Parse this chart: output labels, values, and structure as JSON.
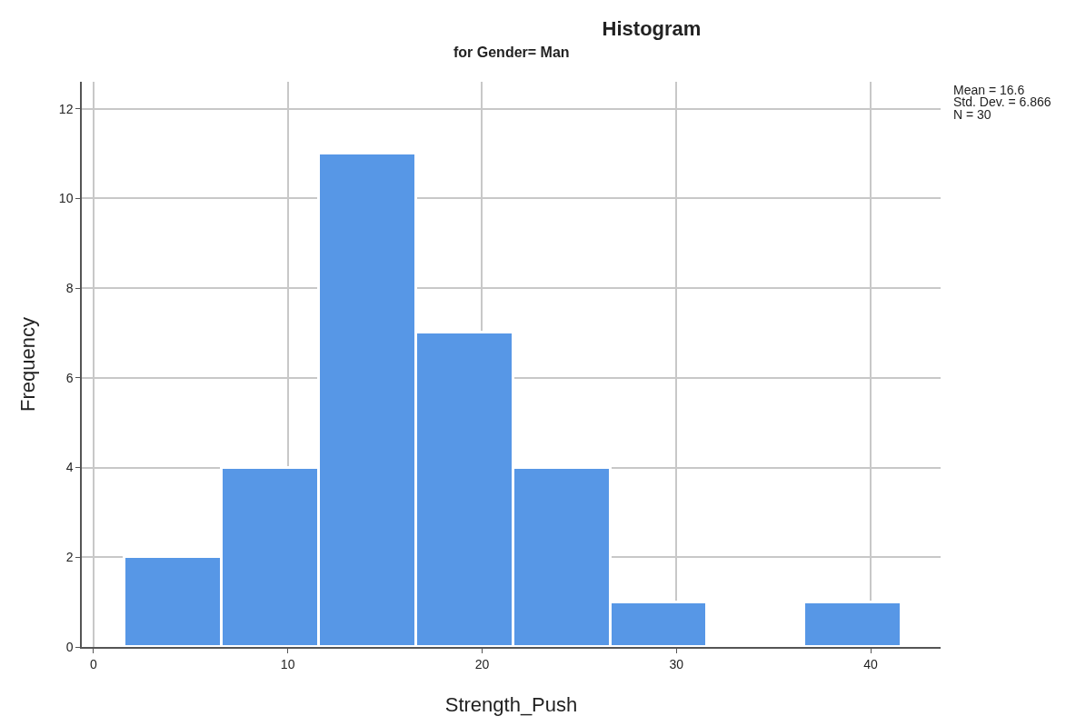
{
  "chart_data": {
    "type": "histogram",
    "title": "Histogram",
    "subtitle": "for Gender= Man",
    "xlabel": "Strength_Push",
    "ylabel": "Frequency",
    "bins": [
      1.6,
      6.6,
      11.6,
      16.6,
      21.6,
      26.6,
      31.6,
      36.6,
      41.6
    ],
    "values": [
      2,
      4,
      11,
      7,
      4,
      1,
      0,
      1
    ],
    "color": "#5797e6",
    "xlim": [
      -0.6,
      43.6
    ],
    "xticks": [
      0,
      10,
      20,
      30,
      40
    ],
    "ylim": [
      0,
      12.6
    ],
    "yticks": [
      0,
      2,
      4,
      6,
      8,
      10,
      12
    ],
    "grid": true,
    "annotations": [
      "Mean = 16.6",
      "Std. Dev. = 6.866",
      "N = 30"
    ]
  }
}
